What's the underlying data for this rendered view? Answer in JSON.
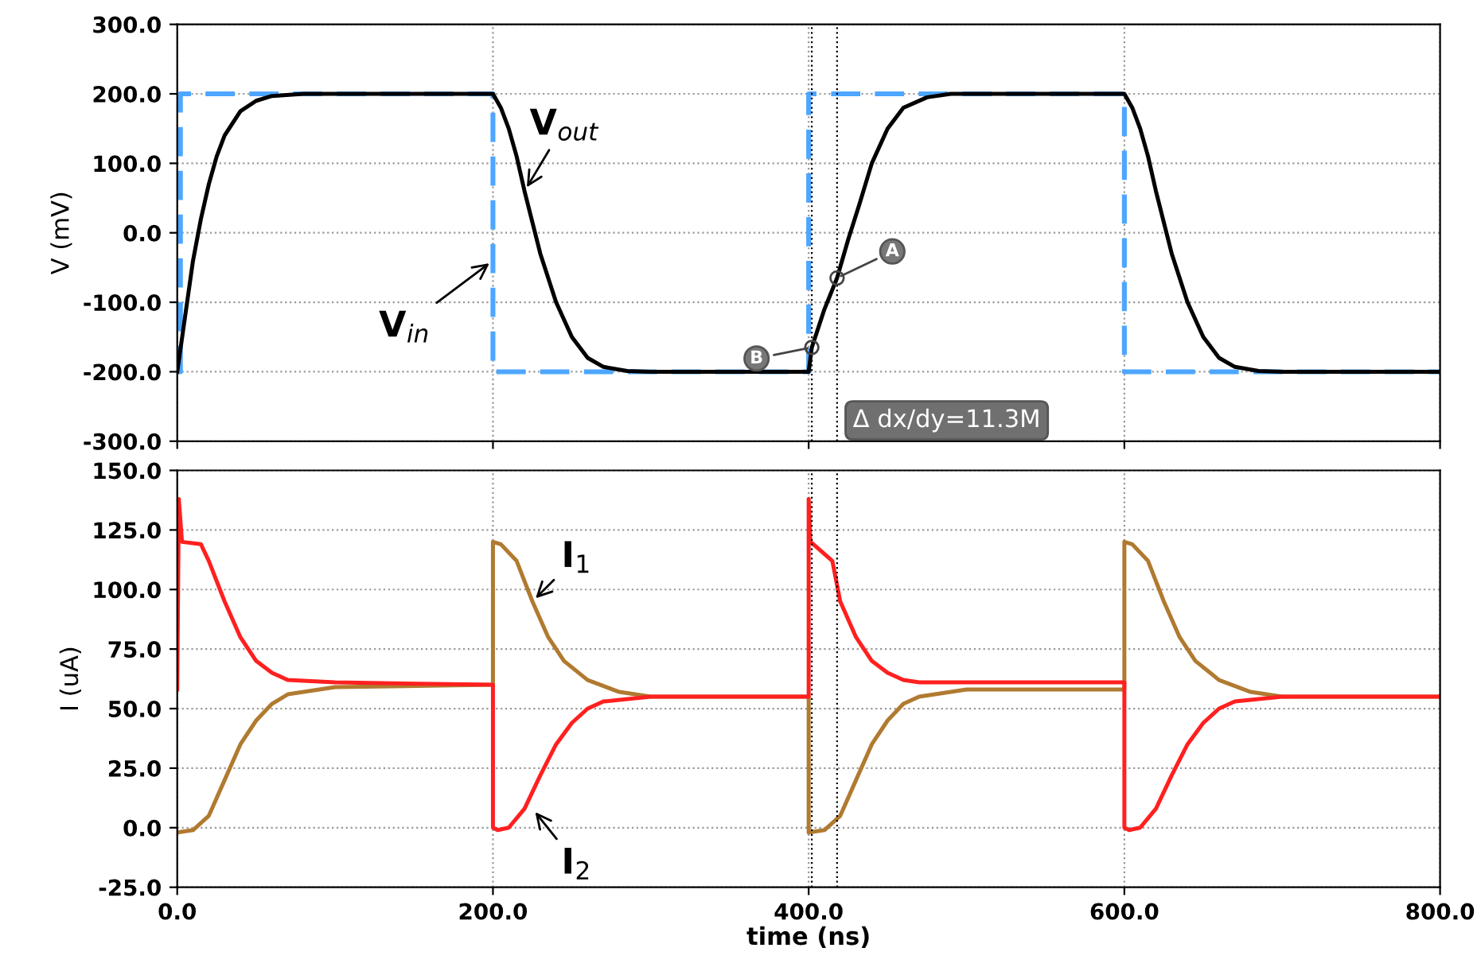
{
  "chart_data": [
    {
      "type": "line",
      "ylabel": "V (mV)",
      "xlim": [
        0,
        800
      ],
      "ylim": [
        -300,
        300
      ],
      "xticks": [
        {
          "value": 0,
          "label": null
        },
        {
          "value": 200,
          "label": null
        },
        {
          "value": 400,
          "label": null
        },
        {
          "value": 600,
          "label": null
        },
        {
          "value": 800,
          "label": null
        }
      ],
      "yticks": [
        {
          "value": -300,
          "label": "-300.0"
        },
        {
          "value": -200,
          "label": "-200.0"
        },
        {
          "value": -100,
          "label": "-100.0"
        },
        {
          "value": 0,
          "label": "0.0"
        },
        {
          "value": 100,
          "label": "100.0"
        },
        {
          "value": 200,
          "label": "200.0"
        },
        {
          "value": 300,
          "label": "300.0"
        }
      ],
      "tick_labels": "y",
      "grid": true,
      "legend": false,
      "series": [
        {
          "color": "#4da6ff",
          "line_style": "dashed",
          "x": [
            0,
            2,
            2,
            200,
            200,
            400,
            400,
            600,
            600,
            800
          ],
          "values": [
            -200,
            -200,
            200,
            200,
            -200,
            -200,
            200,
            200,
            -200,
            -200
          ]
        },
        {
          "color": "#000000",
          "line_style": "solid",
          "x": [
            0,
            5,
            10,
            15,
            20,
            25,
            30,
            40,
            50,
            60,
            80,
            200,
            205,
            210,
            215,
            220,
            225,
            230,
            240,
            250,
            260,
            270,
            285,
            300,
            400,
            402,
            410,
            418,
            425,
            432,
            440,
            450,
            460,
            475,
            490,
            600,
            605,
            610,
            615,
            620,
            625,
            630,
            640,
            650,
            660,
            670,
            685,
            700,
            800
          ],
          "values": [
            -200,
            -120,
            -40,
            20,
            70,
            110,
            140,
            175,
            190,
            197,
            200,
            200,
            180,
            150,
            110,
            60,
            15,
            -30,
            -100,
            -150,
            -180,
            -193,
            -199,
            -200,
            -200,
            -165,
            -110,
            -65,
            -10,
            40,
            100,
            150,
            180,
            195,
            200,
            200,
            180,
            150,
            110,
            60,
            15,
            -30,
            -100,
            -150,
            -180,
            -193,
            -199,
            -200,
            -200
          ]
        }
      ],
      "ref_lines": [
        {
          "axis": "x",
          "value": 402,
          "color": "#000000",
          "line_style": "dotted"
        },
        {
          "axis": "x",
          "value": 418,
          "color": "#000000",
          "line_style": "dotted"
        }
      ],
      "annotations": [
        {
          "text": "V$_{out}$",
          "x": 220,
          "y": 60
        },
        {
          "text": "V$_{in}$",
          "x": 200,
          "y": -40
        },
        {
          "text": "A",
          "x": 418,
          "y": -65
        },
        {
          "text": "B",
          "x": 402,
          "y": -165
        },
        "Δ dx/dy=11.3M"
      ]
    },
    {
      "type": "line",
      "xlabel": "time (ns)",
      "ylabel": "I (uA)",
      "xlim": [
        0,
        800
      ],
      "ylim": [
        -25,
        150
      ],
      "xticks": [
        {
          "value": 0,
          "label": "0.0"
        },
        {
          "value": 200,
          "label": "200.0"
        },
        {
          "value": 400,
          "label": "400.0"
        },
        {
          "value": 600,
          "label": "600.0"
        },
        {
          "value": 800,
          "label": "800.0"
        }
      ],
      "yticks": [
        {
          "value": -25,
          "label": "-25.0"
        },
        {
          "value": 0,
          "label": "0.0"
        },
        {
          "value": 25,
          "label": "25.0"
        },
        {
          "value": 50,
          "label": "50.0"
        },
        {
          "value": 75,
          "label": "75.0"
        },
        {
          "value": 100,
          "label": "100.0"
        },
        {
          "value": 125,
          "label": "125.0"
        },
        {
          "value": 150,
          "label": "150.0"
        }
      ],
      "grid": true,
      "legend": false,
      "series": [
        {
          "color": "#b07a30",
          "line_style": "solid",
          "x": [
            0,
            10,
            20,
            30,
            40,
            50,
            60,
            70,
            100,
            200,
            200,
            205,
            215,
            225,
            235,
            245,
            260,
            280,
            300,
            400,
            400,
            410,
            420,
            430,
            440,
            450,
            460,
            470,
            500,
            600,
            600,
            605,
            615,
            625,
            635,
            645,
            660,
            680,
            700,
            800
          ],
          "values": [
            -2,
            -1,
            5,
            20,
            35,
            45,
            52,
            56,
            59,
            60,
            120,
            119,
            112,
            95,
            80,
            70,
            62,
            57,
            55,
            55,
            -2,
            -1,
            5,
            20,
            35,
            45,
            52,
            55,
            58,
            58,
            120,
            119,
            112,
            95,
            80,
            70,
            62,
            57,
            55,
            55
          ]
        },
        {
          "color": "#ff2020",
          "line_style": "solid",
          "x": [
            0,
            1,
            3,
            15,
            20,
            30,
            40,
            50,
            60,
            70,
            100,
            200,
            200,
            203,
            210,
            220,
            230,
            240,
            250,
            260,
            270,
            300,
            400,
            400,
            401,
            403,
            415,
            420,
            430,
            440,
            450,
            460,
            470,
            500,
            600,
            600,
            603,
            610,
            620,
            630,
            640,
            650,
            660,
            670,
            700,
            800
          ],
          "values": [
            58,
            138,
            120,
            119,
            112,
            95,
            80,
            70,
            65,
            62,
            61,
            60,
            0,
            -1,
            0,
            8,
            22,
            35,
            44,
            50,
            53,
            55,
            55,
            138,
            120,
            119,
            112,
            95,
            80,
            70,
            65,
            62,
            61,
            61,
            61,
            0,
            -1,
            0,
            8,
            22,
            35,
            44,
            50,
            53,
            55,
            55
          ]
        }
      ],
      "ref_lines": [
        {
          "axis": "x",
          "value": 402,
          "color": "#000000",
          "line_style": "dotted"
        },
        {
          "axis": "x",
          "value": 418,
          "color": "#000000",
          "line_style": "dotted"
        }
      ],
      "annotations": [
        {
          "text": "I$_{1}$",
          "x": 225,
          "y": 95
        },
        {
          "text": "I$_{2}$",
          "x": 225,
          "y": 8
        }
      ]
    }
  ]
}
